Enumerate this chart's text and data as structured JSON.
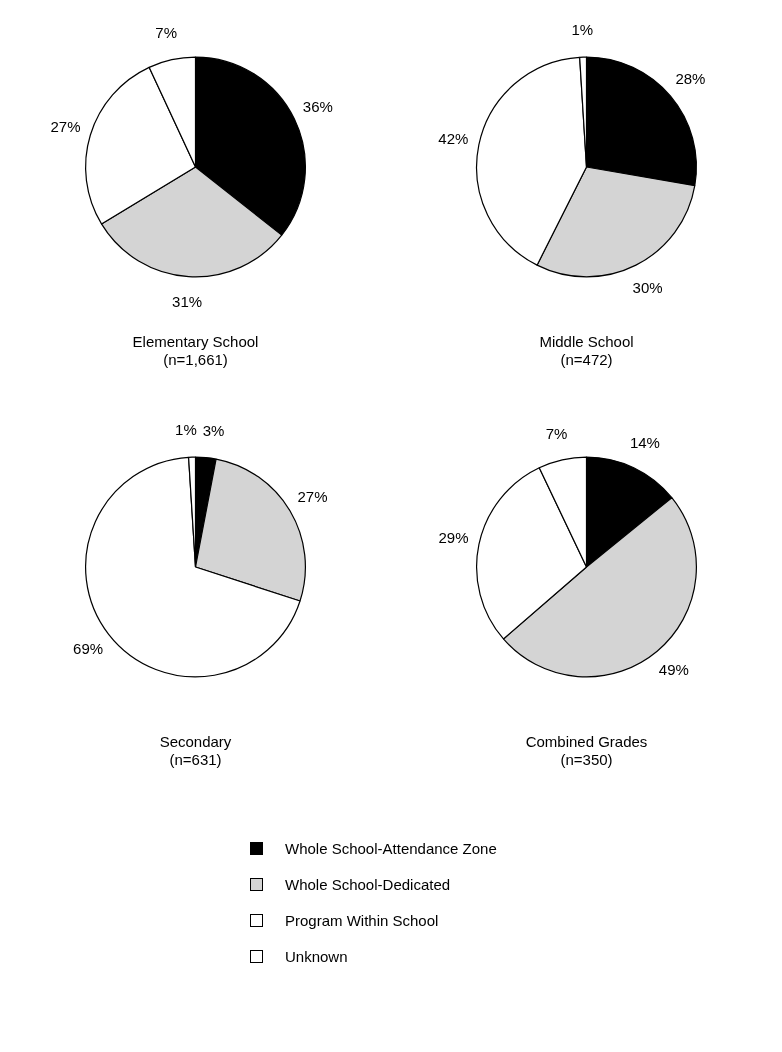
{
  "chart_data": [
    {
      "type": "pie",
      "title": "Elementary School",
      "subtitle": "(n=1,661)",
      "categories": [
        "Whole School-Attendance Zone",
        "Whole School-Dedicated",
        "Program Within School",
        "Unknown"
      ],
      "values": [
        36,
        31,
        27,
        7
      ],
      "value_labels": [
        "36%",
        "31%",
        "27%",
        "7%"
      ],
      "colors": [
        "#000000",
        "#d4d4d4",
        "#ffffff",
        "#ffffff"
      ],
      "legend": "bottom"
    },
    {
      "type": "pie",
      "title": "Middle School",
      "subtitle": "(n=472)",
      "categories": [
        null,
        null,
        null,
        null
      ],
      "values": [
        28,
        30,
        42,
        1
      ],
      "value_labels": [
        "28%",
        "30%",
        "42%",
        "1%"
      ],
      "colors": [
        "#000000",
        "#d4d4d4",
        "#ffffff",
        "#ffffff"
      ]
    },
    {
      "type": "pie",
      "title": "Secondary",
      "subtitle": "(n=631)",
      "categories": [
        null,
        null,
        null,
        null
      ],
      "values": [
        3,
        27,
        69,
        1
      ],
      "value_labels": [
        "3%",
        "27%",
        "69%",
        "1%"
      ],
      "colors": [
        "#000000",
        "#d4d4d4",
        "#ffffff",
        "#ffffff"
      ]
    },
    {
      "type": "pie",
      "title": "Combined Grades",
      "subtitle": "(n=350)",
      "categories": [
        null,
        null,
        null,
        null
      ],
      "values": [
        14,
        49,
        29,
        7
      ],
      "value_labels": [
        "14%",
        "49%",
        "29%",
        "7%"
      ],
      "colors": [
        "#000000",
        "#d4d4d4",
        "#ffffff",
        "#ffffff"
      ]
    }
  ]
}
